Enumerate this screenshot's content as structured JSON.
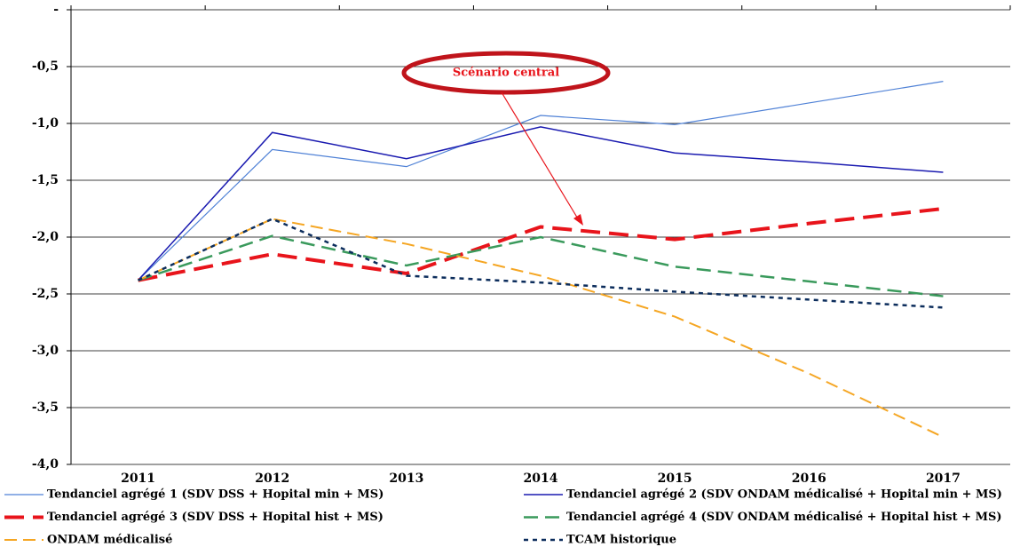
{
  "chart_data": {
    "type": "line",
    "categories": [
      "2011",
      "2012",
      "2013",
      "2014",
      "2015",
      "2016",
      "2017"
    ],
    "ylim": [
      -4,
      0
    ],
    "yticks": [
      {
        "value": 0,
        "label": "-"
      },
      {
        "value": -0.5,
        "label": "-0,5"
      },
      {
        "value": -1,
        "label": "-1,0"
      },
      {
        "value": -1.5,
        "label": "-1,5"
      },
      {
        "value": -2,
        "label": "-2,0"
      },
      {
        "value": -2.5,
        "label": "-2,5"
      },
      {
        "value": -3,
        "label": "-3,0"
      },
      {
        "value": -3.5,
        "label": "-3,5"
      },
      {
        "value": -4,
        "label": "-4,0"
      }
    ],
    "grid": true,
    "legend": "bottom",
    "annotation": "Scénario central",
    "series": [
      {
        "name": "Tendanciel agrégé 1 (SDV DSS + Hopital min + MS)",
        "color": "#4f81d6",
        "width": 1.2,
        "dash": "none",
        "values": [
          -2.38,
          -1.23,
          -1.38,
          -0.93,
          -1.01,
          -0.82,
          -0.63
        ]
      },
      {
        "name": "Tendanciel agrégé 2  (SDV ONDAM médicalisé + Hopital min + MS)",
        "color": "#1a1ab0",
        "width": 1.5,
        "dash": "none",
        "values": [
          -2.38,
          -1.08,
          -1.31,
          -1.03,
          -1.26,
          -1.34,
          -1.43
        ]
      },
      {
        "name": "Tendanciel agrégé 3  (SDV DSS + Hopital hist + MS)",
        "color": "#e8141b",
        "width": 4,
        "dash": "22 10",
        "values": [
          -2.38,
          -2.15,
          -2.32,
          -1.91,
          -2.02,
          -1.88,
          -1.75
        ]
      },
      {
        "name": "Tendanciel agrégé 4 (SDV ONDAM médicalisé + Hopital hist + MS)",
        "color": "#3a9a5c",
        "width": 2.5,
        "dash": "16 8",
        "values": [
          -2.38,
          -1.99,
          -2.25,
          -2.0,
          -2.26,
          -2.39,
          -2.52
        ]
      },
      {
        "name": "ONDAM médicalisé",
        "color": "#f5a623",
        "width": 2,
        "dash": "14 7",
        "values": [
          -2.38,
          -1.84,
          -2.06,
          -2.34,
          -2.7,
          -3.2,
          -3.76
        ]
      },
      {
        "name": "TCAM historique",
        "color": "#0c2d5c",
        "width": 2.5,
        "dash": "5 5",
        "values": [
          -2.38,
          -1.84,
          -2.34,
          -2.4,
          -2.48,
          -2.55,
          -2.62
        ]
      }
    ]
  }
}
